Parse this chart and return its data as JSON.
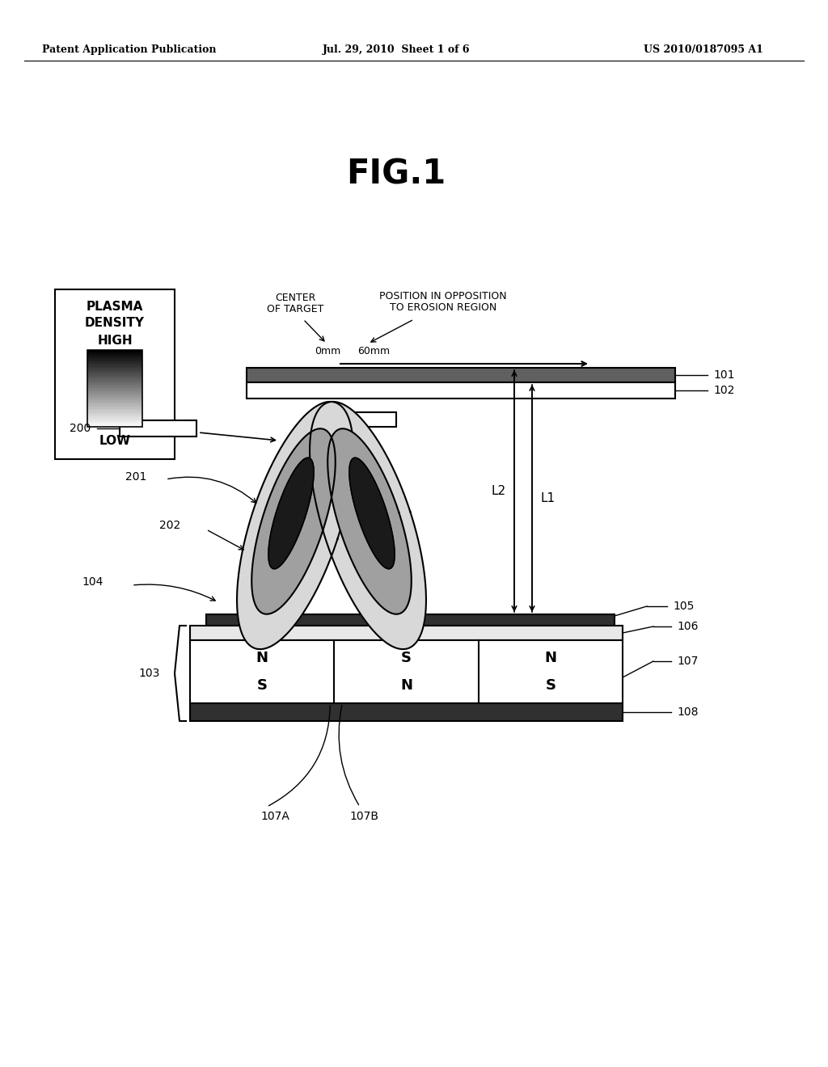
{
  "background_color": "#ffffff",
  "header_left": "Patent Application Publication",
  "header_center": "Jul. 29, 2010  Sheet 1 of 6",
  "header_right": "US 2010/0187095 A1",
  "fig_label": "FIG.1",
  "legend_title1": "PLASMA",
  "legend_title2": "DENSITY",
  "legend_high": "HIGH",
  "legend_low": "LOW",
  "label_center": "CENTER",
  "label_of_target": "OF TARGET",
  "label_position": "POSITION IN OPPOSITION",
  "label_to_erosion": "TO EROSION REGION",
  "label_0mm": "0mm",
  "label_60mm": "60mm",
  "ref_101": "101",
  "ref_102": "102",
  "ref_103": "103",
  "ref_104": "104",
  "ref_105": "105",
  "ref_106": "106",
  "ref_107": "107",
  "ref_108": "108",
  "ref_200": "200",
  "ref_201": "201",
  "ref_202": "202",
  "ref_107A": "107A",
  "ref_107B": "107B",
  "label_L1": "L1",
  "label_L2": "L2"
}
